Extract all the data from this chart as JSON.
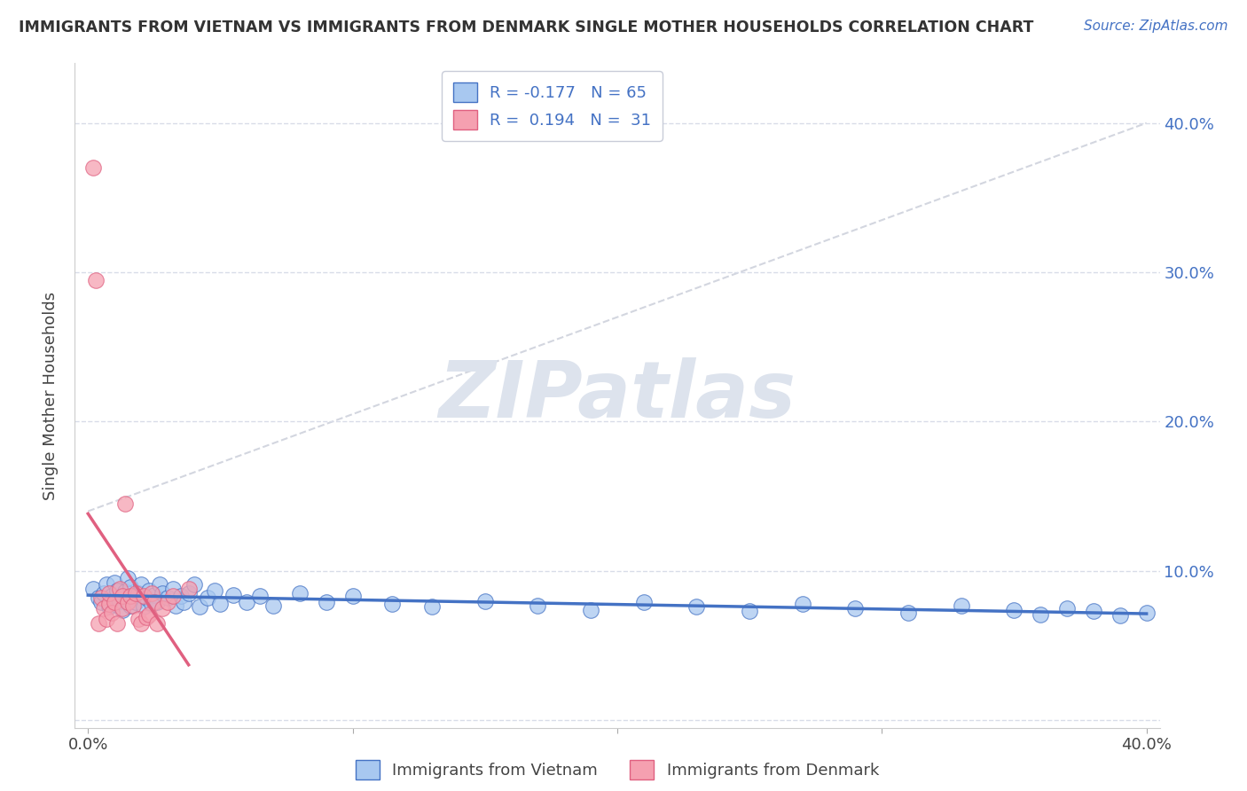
{
  "title": "IMMIGRANTS FROM VIETNAM VS IMMIGRANTS FROM DENMARK SINGLE MOTHER HOUSEHOLDS CORRELATION CHART",
  "source": "Source: ZipAtlas.com",
  "ylabel": "Single Mother Households",
  "xlim": [
    0.0,
    0.4
  ],
  "ylim": [
    0.0,
    0.44
  ],
  "ytick_vals": [
    0.0,
    0.1,
    0.2,
    0.3,
    0.4
  ],
  "ytick_labels": [
    "",
    "10.0%",
    "20.0%",
    "30.0%",
    "40.0%"
  ],
  "color_vietnam": "#a8c8f0",
  "color_denmark": "#f5a0b0",
  "color_line_vietnam": "#4472c4",
  "color_line_denmark": "#e06080",
  "background_color": "#ffffff",
  "grid_color": "#d8dce8",
  "watermark": "ZIPatlas",
  "legend_r1": "-0.177",
  "legend_n1": "65",
  "legend_r2": "0.194",
  "legend_n2": "31",
  "vietnam_x": [
    0.002,
    0.004,
    0.005,
    0.006,
    0.007,
    0.008,
    0.009,
    0.01,
    0.01,
    0.011,
    0.012,
    0.013,
    0.014,
    0.015,
    0.015,
    0.016,
    0.016,
    0.017,
    0.018,
    0.019,
    0.02,
    0.021,
    0.022,
    0.023,
    0.024,
    0.025,
    0.026,
    0.027,
    0.028,
    0.03,
    0.032,
    0.033,
    0.035,
    0.036,
    0.038,
    0.04,
    0.042,
    0.045,
    0.048,
    0.05,
    0.055,
    0.06,
    0.065,
    0.07,
    0.08,
    0.09,
    0.1,
    0.115,
    0.13,
    0.15,
    0.17,
    0.19,
    0.21,
    0.23,
    0.25,
    0.27,
    0.29,
    0.31,
    0.33,
    0.35,
    0.36,
    0.37,
    0.38,
    0.39,
    0.4
  ],
  "vietnam_y": [
    0.088,
    0.082,
    0.079,
    0.085,
    0.091,
    0.076,
    0.083,
    0.078,
    0.092,
    0.087,
    0.08,
    0.074,
    0.086,
    0.081,
    0.095,
    0.077,
    0.089,
    0.083,
    0.079,
    0.085,
    0.091,
    0.076,
    0.082,
    0.087,
    0.078,
    0.084,
    0.079,
    0.091,
    0.085,
    0.082,
    0.088,
    0.077,
    0.083,
    0.079,
    0.085,
    0.091,
    0.076,
    0.082,
    0.087,
    0.078,
    0.084,
    0.079,
    0.083,
    0.077,
    0.085,
    0.079,
    0.083,
    0.078,
    0.076,
    0.08,
    0.077,
    0.074,
    0.079,
    0.076,
    0.073,
    0.078,
    0.075,
    0.072,
    0.077,
    0.074,
    0.071,
    0.075,
    0.073,
    0.07,
    0.072
  ],
  "denmark_x": [
    0.002,
    0.003,
    0.004,
    0.005,
    0.006,
    0.007,
    0.008,
    0.008,
    0.009,
    0.01,
    0.011,
    0.012,
    0.013,
    0.013,
    0.014,
    0.015,
    0.016,
    0.017,
    0.018,
    0.019,
    0.02,
    0.021,
    0.022,
    0.023,
    0.024,
    0.025,
    0.026,
    0.028,
    0.03,
    0.032,
    0.038
  ],
  "denmark_y": [
    0.37,
    0.295,
    0.065,
    0.082,
    0.075,
    0.068,
    0.078,
    0.085,
    0.072,
    0.079,
    0.065,
    0.088,
    0.075,
    0.083,
    0.145,
    0.079,
    0.083,
    0.077,
    0.085,
    0.068,
    0.065,
    0.083,
    0.069,
    0.071,
    0.085,
    0.079,
    0.065,
    0.075,
    0.079,
    0.083,
    0.088
  ],
  "trendline_x": [
    0.0,
    0.4
  ],
  "trendline_y": [
    0.14,
    0.4
  ]
}
